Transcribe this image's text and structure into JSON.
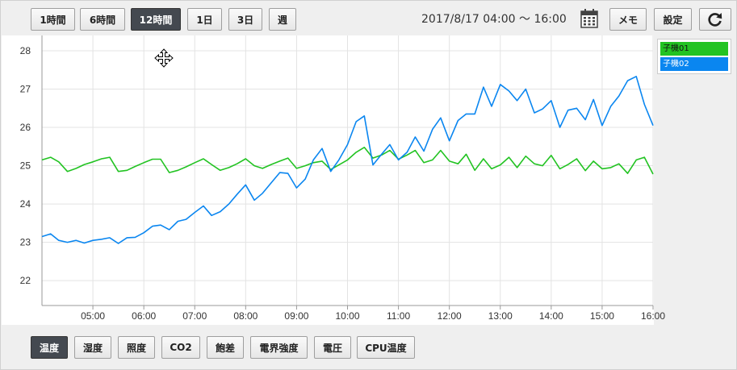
{
  "range_buttons": [
    {
      "label": "1時間",
      "active": false
    },
    {
      "label": "6時間",
      "active": false
    },
    {
      "label": "12時間",
      "active": true
    },
    {
      "label": "1日",
      "active": false
    },
    {
      "label": "3日",
      "active": false
    },
    {
      "label": "週",
      "active": false
    }
  ],
  "header": {
    "date_range": "2017/8/17 04:00 〜 16:00",
    "calendar_icon": "calendar-icon",
    "memo_label": "メモ",
    "settings_label": "設定",
    "refresh_icon": "refresh-icon"
  },
  "legend": [
    {
      "label": "子機01",
      "color": "#22c322"
    },
    {
      "label": "子機02",
      "color": "#0a86f0"
    }
  ],
  "sensor_tabs": [
    {
      "label": "温度",
      "active": true
    },
    {
      "label": "湿度",
      "active": false
    },
    {
      "label": "照度",
      "active": false
    },
    {
      "label": "CO2",
      "active": false
    },
    {
      "label": "飽差",
      "active": false
    },
    {
      "label": "電界強度",
      "active": false
    },
    {
      "label": "電圧",
      "active": false
    },
    {
      "label": "CPU温度",
      "active": false
    }
  ],
  "chart_data": {
    "type": "line",
    "y_ticks": [
      22,
      23,
      24,
      25,
      26,
      27,
      28
    ],
    "ylim": [
      21.35,
      28.4
    ],
    "x_ticks": [
      "05:00",
      "06:00",
      "07:00",
      "08:00",
      "09:00",
      "10:00",
      "11:00",
      "12:00",
      "13:00",
      "14:00",
      "15:00",
      "16:00"
    ],
    "xlim_hours": [
      4.0,
      16.0
    ],
    "grid": true,
    "legend_position": "top-right",
    "series": [
      {
        "name": "子機01",
        "color": "#22c322",
        "points": [
          [
            4.0,
            25.15
          ],
          [
            4.17,
            25.22
          ],
          [
            4.33,
            25.1
          ],
          [
            4.5,
            24.85
          ],
          [
            4.67,
            24.93
          ],
          [
            4.83,
            25.03
          ],
          [
            5.0,
            25.1
          ],
          [
            5.17,
            25.18
          ],
          [
            5.33,
            25.22
          ],
          [
            5.5,
            24.85
          ],
          [
            5.67,
            24.88
          ],
          [
            5.83,
            24.98
          ],
          [
            6.0,
            25.08
          ],
          [
            6.17,
            25.17
          ],
          [
            6.33,
            25.17
          ],
          [
            6.5,
            24.82
          ],
          [
            6.67,
            24.88
          ],
          [
            6.83,
            24.97
          ],
          [
            7.0,
            25.08
          ],
          [
            7.17,
            25.18
          ],
          [
            7.33,
            25.03
          ],
          [
            7.5,
            24.88
          ],
          [
            7.67,
            24.95
          ],
          [
            7.83,
            25.05
          ],
          [
            8.0,
            25.18
          ],
          [
            8.17,
            25.0
          ],
          [
            8.33,
            24.93
          ],
          [
            8.5,
            25.03
          ],
          [
            8.67,
            25.12
          ],
          [
            8.83,
            25.2
          ],
          [
            9.0,
            24.93
          ],
          [
            9.17,
            25.0
          ],
          [
            9.33,
            25.08
          ],
          [
            9.5,
            25.12
          ],
          [
            9.67,
            24.9
          ],
          [
            9.83,
            25.02
          ],
          [
            10.0,
            25.15
          ],
          [
            10.17,
            25.35
          ],
          [
            10.33,
            25.48
          ],
          [
            10.5,
            25.2
          ],
          [
            10.67,
            25.28
          ],
          [
            10.83,
            25.4
          ],
          [
            11.0,
            25.17
          ],
          [
            11.17,
            25.28
          ],
          [
            11.33,
            25.4
          ],
          [
            11.5,
            25.08
          ],
          [
            11.67,
            25.15
          ],
          [
            11.83,
            25.4
          ],
          [
            12.0,
            25.12
          ],
          [
            12.17,
            25.05
          ],
          [
            12.33,
            25.3
          ],
          [
            12.5,
            24.88
          ],
          [
            12.67,
            25.18
          ],
          [
            12.83,
            24.92
          ],
          [
            13.0,
            25.02
          ],
          [
            13.17,
            25.22
          ],
          [
            13.33,
            24.95
          ],
          [
            13.5,
            25.25
          ],
          [
            13.67,
            25.05
          ],
          [
            13.83,
            25.0
          ],
          [
            14.0,
            25.27
          ],
          [
            14.17,
            24.92
          ],
          [
            14.33,
            25.03
          ],
          [
            14.5,
            25.18
          ],
          [
            14.67,
            24.87
          ],
          [
            14.83,
            25.12
          ],
          [
            15.0,
            24.92
          ],
          [
            15.17,
            24.95
          ],
          [
            15.33,
            25.05
          ],
          [
            15.5,
            24.8
          ],
          [
            15.67,
            25.15
          ],
          [
            15.83,
            25.22
          ],
          [
            16.0,
            24.78
          ]
        ]
      },
      {
        "name": "子機02",
        "color": "#0a86f0",
        "points": [
          [
            4.0,
            23.15
          ],
          [
            4.17,
            23.22
          ],
          [
            4.33,
            23.05
          ],
          [
            4.5,
            23.0
          ],
          [
            4.67,
            23.05
          ],
          [
            4.83,
            22.98
          ],
          [
            5.0,
            23.05
          ],
          [
            5.17,
            23.08
          ],
          [
            5.33,
            23.12
          ],
          [
            5.5,
            22.97
          ],
          [
            5.67,
            23.12
          ],
          [
            5.83,
            23.13
          ],
          [
            6.0,
            23.25
          ],
          [
            6.17,
            23.42
          ],
          [
            6.33,
            23.45
          ],
          [
            6.5,
            23.33
          ],
          [
            6.67,
            23.55
          ],
          [
            6.83,
            23.6
          ],
          [
            7.0,
            23.78
          ],
          [
            7.17,
            23.95
          ],
          [
            7.33,
            23.7
          ],
          [
            7.5,
            23.8
          ],
          [
            7.67,
            24.0
          ],
          [
            7.83,
            24.25
          ],
          [
            8.0,
            24.5
          ],
          [
            8.17,
            24.1
          ],
          [
            8.33,
            24.28
          ],
          [
            8.5,
            24.55
          ],
          [
            8.67,
            24.82
          ],
          [
            8.83,
            24.8
          ],
          [
            9.0,
            24.42
          ],
          [
            9.17,
            24.65
          ],
          [
            9.33,
            25.15
          ],
          [
            9.5,
            25.45
          ],
          [
            9.67,
            24.85
          ],
          [
            9.83,
            25.15
          ],
          [
            10.0,
            25.55
          ],
          [
            10.17,
            26.15
          ],
          [
            10.33,
            26.3
          ],
          [
            10.5,
            25.02
          ],
          [
            10.67,
            25.3
          ],
          [
            10.83,
            25.55
          ],
          [
            11.0,
            25.15
          ],
          [
            11.17,
            25.35
          ],
          [
            11.33,
            25.75
          ],
          [
            11.5,
            25.38
          ],
          [
            11.67,
            25.95
          ],
          [
            11.83,
            26.25
          ],
          [
            12.0,
            25.65
          ],
          [
            12.17,
            26.18
          ],
          [
            12.33,
            26.35
          ],
          [
            12.5,
            26.35
          ],
          [
            12.67,
            27.05
          ],
          [
            12.83,
            26.55
          ],
          [
            13.0,
            27.12
          ],
          [
            13.17,
            26.95
          ],
          [
            13.33,
            26.7
          ],
          [
            13.5,
            27.0
          ],
          [
            13.67,
            26.38
          ],
          [
            13.83,
            26.48
          ],
          [
            14.0,
            26.7
          ],
          [
            14.17,
            26.0
          ],
          [
            14.33,
            26.45
          ],
          [
            14.5,
            26.5
          ],
          [
            14.67,
            26.2
          ],
          [
            14.83,
            26.73
          ],
          [
            15.0,
            26.05
          ],
          [
            15.17,
            26.55
          ],
          [
            15.33,
            26.82
          ],
          [
            15.5,
            27.22
          ],
          [
            15.67,
            27.33
          ],
          [
            15.83,
            26.6
          ],
          [
            16.0,
            26.05
          ]
        ]
      }
    ]
  }
}
